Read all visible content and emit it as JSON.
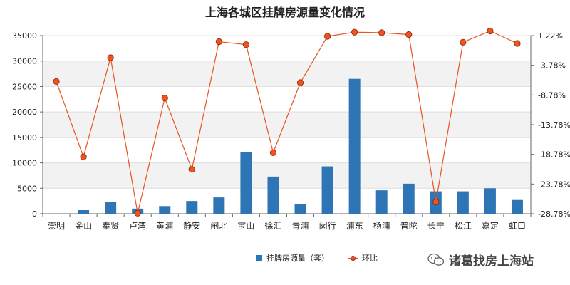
{
  "chart_data": {
    "type": "bar+line",
    "title": "上海各城区挂牌房源量变化情况",
    "categories": [
      "崇明",
      "金山",
      "奉贤",
      "卢湾",
      "黄浦",
      "静安",
      "闸北",
      "宝山",
      "徐汇",
      "青浦",
      "闵行",
      "浦东",
      "杨浦",
      "普陀",
      "长宁",
      "松江",
      "嘉定",
      "虹口"
    ],
    "series": [
      {
        "name": "挂牌房源量（套）",
        "type": "bar",
        "axis": "left",
        "color": "#2E75B6",
        "values": [
          0,
          700,
          2300,
          1000,
          1500,
          2500,
          3200,
          12100,
          7300,
          1900,
          9300,
          26500,
          4600,
          5900,
          4400,
          4400,
          5000,
          2700
        ]
      },
      {
        "name": "环比",
        "type": "line",
        "axis": "right",
        "color": "#E8541E",
        "marker_color": "#F5511E",
        "values": [
          -6.5,
          -19.2,
          -2.5,
          -28.7,
          -9.3,
          -21.3,
          0.2,
          -0.3,
          -18.5,
          -6.7,
          1.1,
          1.8,
          1.7,
          1.4,
          -26.8,
          0.1,
          2.0,
          -0.1
        ]
      }
    ],
    "y_left": {
      "min": 0,
      "max": 35000,
      "ticks": [
        "0",
        "5000",
        "10000",
        "15000",
        "20000",
        "25000",
        "30000",
        "35000"
      ]
    },
    "y_right": {
      "min": -28.78,
      "max": 1.22,
      "ticks": [
        "1.22%",
        "-3.78%",
        "-8.78%",
        "-13.78%",
        "-18.78%",
        "-23.78%",
        "-28.78%"
      ]
    },
    "grid": "banded-horizontal",
    "legend": "bottom-center"
  },
  "watermark": {
    "text": "诸葛找房上海站",
    "icon": "wechat-icon"
  }
}
